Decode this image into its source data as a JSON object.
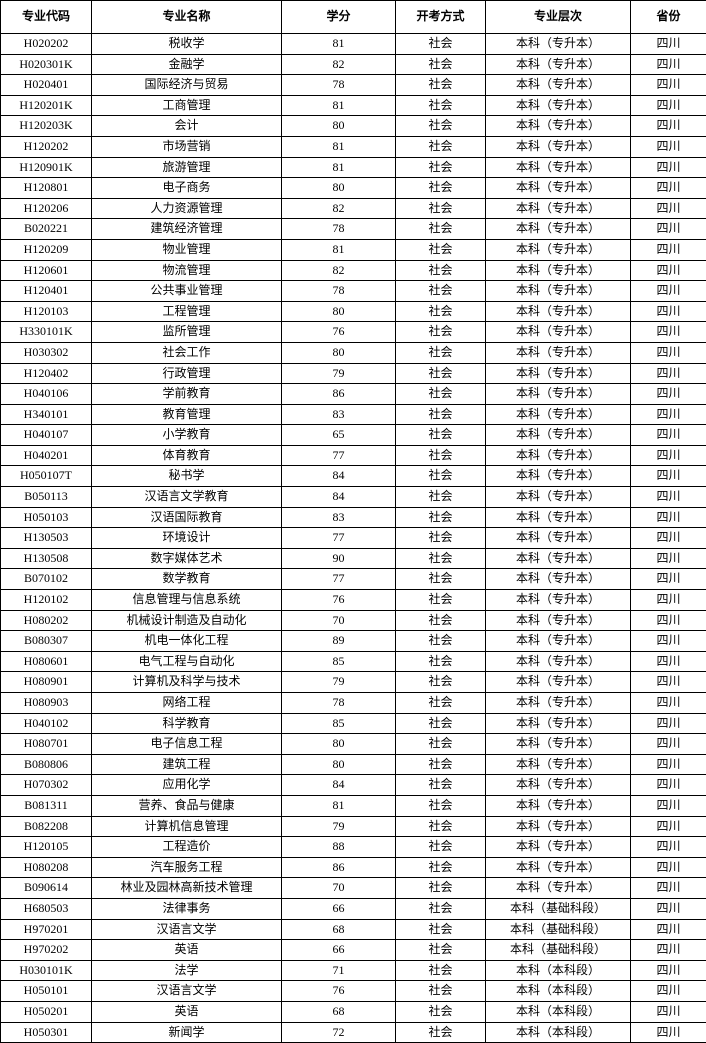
{
  "columns": [
    "专业代码",
    "专业名称",
    "学分",
    "开考方式",
    "专业层次",
    "省份"
  ],
  "rows": [
    [
      "H020202",
      "税收学",
      "81",
      "社会",
      "本科（专升本）",
      "四川"
    ],
    [
      "H020301K",
      "金融学",
      "82",
      "社会",
      "本科（专升本）",
      "四川"
    ],
    [
      "H020401",
      "国际经济与贸易",
      "78",
      "社会",
      "本科（专升本）",
      "四川"
    ],
    [
      "H120201K",
      "工商管理",
      "81",
      "社会",
      "本科（专升本）",
      "四川"
    ],
    [
      "H120203K",
      "会计",
      "80",
      "社会",
      "本科（专升本）",
      "四川"
    ],
    [
      "H120202",
      "市场营销",
      "81",
      "社会",
      "本科（专升本）",
      "四川"
    ],
    [
      "H120901K",
      "旅游管理",
      "81",
      "社会",
      "本科（专升本）",
      "四川"
    ],
    [
      "H120801",
      "电子商务",
      "80",
      "社会",
      "本科（专升本）",
      "四川"
    ],
    [
      "H120206",
      "人力资源管理",
      "82",
      "社会",
      "本科（专升本）",
      "四川"
    ],
    [
      "B020221",
      "建筑经济管理",
      "78",
      "社会",
      "本科（专升本）",
      "四川"
    ],
    [
      "H120209",
      "物业管理",
      "81",
      "社会",
      "本科（专升本）",
      "四川"
    ],
    [
      "H120601",
      "物流管理",
      "82",
      "社会",
      "本科（专升本）",
      "四川"
    ],
    [
      "H120401",
      "公共事业管理",
      "78",
      "社会",
      "本科（专升本）",
      "四川"
    ],
    [
      "H120103",
      "工程管理",
      "80",
      "社会",
      "本科（专升本）",
      "四川"
    ],
    [
      "H330101K",
      "监所管理",
      "76",
      "社会",
      "本科（专升本）",
      "四川"
    ],
    [
      "H030302",
      "社会工作",
      "80",
      "社会",
      "本科（专升本）",
      "四川"
    ],
    [
      "H120402",
      "行政管理",
      "79",
      "社会",
      "本科（专升本）",
      "四川"
    ],
    [
      "H040106",
      "学前教育",
      "86",
      "社会",
      "本科（专升本）",
      "四川"
    ],
    [
      "H340101",
      "教育管理",
      "83",
      "社会",
      "本科（专升本）",
      "四川"
    ],
    [
      "H040107",
      "小学教育",
      "65",
      "社会",
      "本科（专升本）",
      "四川"
    ],
    [
      "H040201",
      "体育教育",
      "77",
      "社会",
      "本科（专升本）",
      "四川"
    ],
    [
      "H050107T",
      "秘书学",
      "84",
      "社会",
      "本科（专升本）",
      "四川"
    ],
    [
      "B050113",
      "汉语言文学教育",
      "84",
      "社会",
      "本科（专升本）",
      "四川"
    ],
    [
      "H050103",
      "汉语国际教育",
      "83",
      "社会",
      "本科（专升本）",
      "四川"
    ],
    [
      "H130503",
      "环境设计",
      "77",
      "社会",
      "本科（专升本）",
      "四川"
    ],
    [
      "H130508",
      "数字媒体艺术",
      "90",
      "社会",
      "本科（专升本）",
      "四川"
    ],
    [
      "B070102",
      "数学教育",
      "77",
      "社会",
      "本科（专升本）",
      "四川"
    ],
    [
      "H120102",
      "信息管理与信息系统",
      "76",
      "社会",
      "本科（专升本）",
      "四川"
    ],
    [
      "H080202",
      "机械设计制造及自动化",
      "70",
      "社会",
      "本科（专升本）",
      "四川"
    ],
    [
      "B080307",
      "机电一体化工程",
      "89",
      "社会",
      "本科（专升本）",
      "四川"
    ],
    [
      "H080601",
      "电气工程与自动化",
      "85",
      "社会",
      "本科（专升本）",
      "四川"
    ],
    [
      "H080901",
      "计算机及科学与技术",
      "79",
      "社会",
      "本科（专升本）",
      "四川"
    ],
    [
      "H080903",
      "网络工程",
      "78",
      "社会",
      "本科（专升本）",
      "四川"
    ],
    [
      "H040102",
      "科学教育",
      "85",
      "社会",
      "本科（专升本）",
      "四川"
    ],
    [
      "H080701",
      "电子信息工程",
      "80",
      "社会",
      "本科（专升本）",
      "四川"
    ],
    [
      "B080806",
      "建筑工程",
      "80",
      "社会",
      "本科（专升本）",
      "四川"
    ],
    [
      "H070302",
      "应用化学",
      "84",
      "社会",
      "本科（专升本）",
      "四川"
    ],
    [
      "B081311",
      "营养、食品与健康",
      "81",
      "社会",
      "本科（专升本）",
      "四川"
    ],
    [
      "B082208",
      "计算机信息管理",
      "79",
      "社会",
      "本科（专升本）",
      "四川"
    ],
    [
      "H120105",
      "工程造价",
      "88",
      "社会",
      "本科（专升本）",
      "四川"
    ],
    [
      "H080208",
      "汽车服务工程",
      "86",
      "社会",
      "本科（专升本）",
      "四川"
    ],
    [
      "B090614",
      "林业及园林高新技术管理",
      "70",
      "社会",
      "本科（专升本）",
      "四川"
    ],
    [
      "H680503",
      "法律事务",
      "66",
      "社会",
      "本科（基础科段）",
      "四川"
    ],
    [
      "H970201",
      "汉语言文学",
      "68",
      "社会",
      "本科（基础科段）",
      "四川"
    ],
    [
      "H970202",
      "英语",
      "66",
      "社会",
      "本科（基础科段）",
      "四川"
    ],
    [
      "H030101K",
      "法学",
      "71",
      "社会",
      "本科（本科段）",
      "四川"
    ],
    [
      "H050101",
      "汉语言文学",
      "76",
      "社会",
      "本科（本科段）",
      "四川"
    ],
    [
      "H050201",
      "英语",
      "68",
      "社会",
      "本科（本科段）",
      "四川"
    ],
    [
      "H050301",
      "新闻学",
      "72",
      "社会",
      "本科（本科段）",
      "四川"
    ]
  ]
}
